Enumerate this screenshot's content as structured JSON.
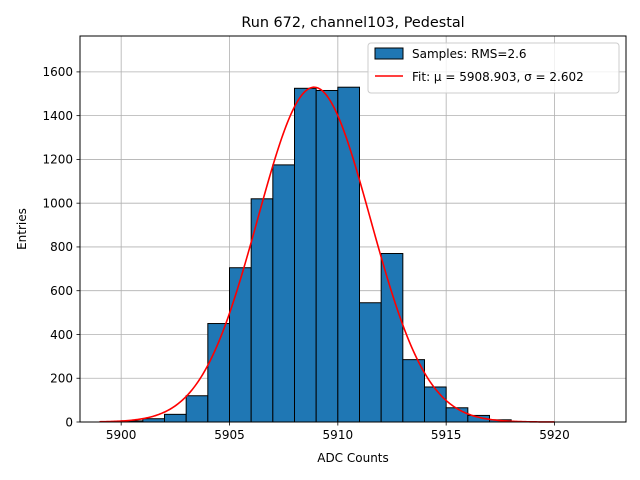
{
  "chart_data": {
    "type": "bar",
    "title": "Run 672, channel103, Pedestal",
    "xlabel": "ADC Counts",
    "ylabel": "Entries",
    "xlim": [
      5898.1,
      5923.3
    ],
    "ylim": [
      0,
      1764
    ],
    "xticks": [
      5900,
      5905,
      5910,
      5915,
      5920
    ],
    "yticks": [
      0,
      200,
      400,
      600,
      800,
      1000,
      1200,
      1400,
      1600
    ],
    "grid": true,
    "legend_position": "top-right",
    "histogram": {
      "name": "Samples: RMS=2.6",
      "bin_width": 1,
      "bin_starts": [
        5899,
        5900,
        5901,
        5902,
        5903,
        5904,
        5905,
        5906,
        5907,
        5908,
        5909,
        5910,
        5911,
        5912,
        5913,
        5914,
        5915,
        5916,
        5917,
        5918,
        5919,
        5920,
        5921
      ],
      "values": [
        0,
        5,
        15,
        35,
        120,
        450,
        705,
        1020,
        1175,
        1525,
        1515,
        1530,
        545,
        770,
        285,
        160,
        65,
        30,
        10,
        0,
        0,
        0,
        0
      ],
      "color": "#1f77b4"
    },
    "fit": {
      "name": "Fit: μ = 5908.903, σ = 2.602",
      "mu": 5908.903,
      "sigma": 2.602,
      "amplitude": 1530,
      "x_range": [
        5899,
        5920
      ],
      "color": "#ff0000"
    }
  }
}
